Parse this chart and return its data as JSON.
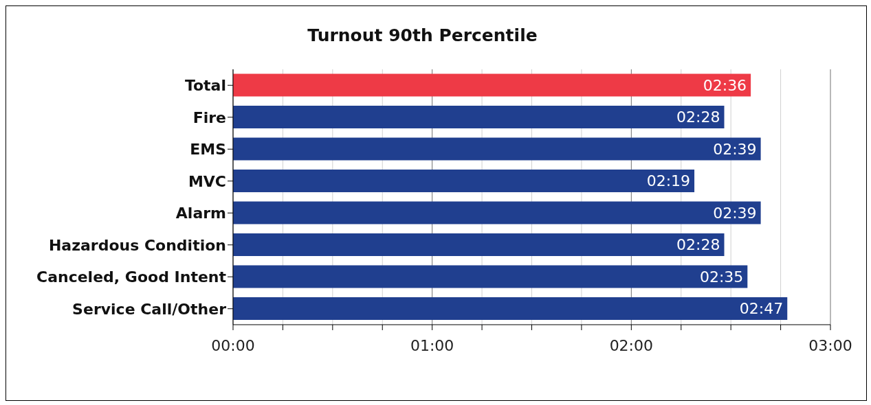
{
  "chart_data": {
    "type": "bar",
    "orientation": "horizontal",
    "title": "Turnout 90th Percentile",
    "categories": [
      "Total",
      "Fire",
      "EMS",
      "MVC",
      "Alarm",
      "Hazardous Condition",
      "Canceled, Good Intent",
      "Service Call/Other"
    ],
    "values": [
      156,
      148,
      159,
      139,
      159,
      148,
      155,
      167
    ],
    "colors": [
      "#ee3a46",
      "#203f8f",
      "#203f8f",
      "#203f8f",
      "#203f8f",
      "#203f8f",
      "#203f8f",
      "#203f8f"
    ],
    "value_labels": [
      "02:36",
      "02:28",
      "02:39",
      "02:19",
      "02:39",
      "02:28",
      "02:35",
      "02:47"
    ],
    "xlim": [
      0,
      180
    ],
    "xticks": [
      {
        "value": 0,
        "label": "00:00"
      },
      {
        "value": 15,
        "label": null
      },
      {
        "value": 30,
        "label": null
      },
      {
        "value": 45,
        "label": null
      },
      {
        "value": 60,
        "label": "01:00"
      },
      {
        "value": 75,
        "label": null
      },
      {
        "value": 90,
        "label": null
      },
      {
        "value": 105,
        "label": null
      },
      {
        "value": 120,
        "label": "02:00"
      },
      {
        "value": 135,
        "label": null
      },
      {
        "value": 150,
        "label": null
      },
      {
        "value": 165,
        "label": null
      },
      {
        "value": 180,
        "label": "03:00"
      }
    ],
    "grid": "x"
  }
}
